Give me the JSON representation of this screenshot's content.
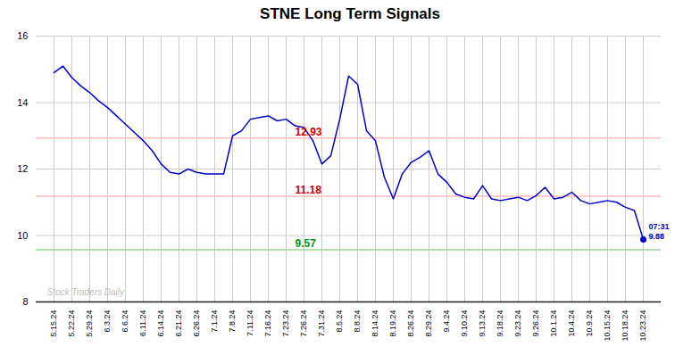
{
  "chart_data": {
    "type": "line",
    "title": "STNE Long Term Signals",
    "categories": [
      "5.15.24",
      null,
      "5.22.24",
      null,
      "5.29.24",
      null,
      "6.3.24",
      null,
      "6.6.24",
      null,
      "6.11.24",
      null,
      "6.14.24",
      null,
      "6.21.24",
      null,
      "6.26.24",
      null,
      "7.1.24",
      null,
      "7.8.24",
      null,
      "7.11.24",
      null,
      "7.16.24",
      null,
      "7.23.24",
      null,
      "7.26.24",
      null,
      "7.31.24",
      null,
      "8.5.24",
      null,
      "8.8.24",
      null,
      "8.14.24",
      null,
      "8.19.24",
      null,
      "8.26.24",
      null,
      "8.29.24",
      null,
      "9.4.24",
      null,
      "9.10.24",
      null,
      "9.13.24",
      null,
      "9.18.24",
      null,
      "9.23.24",
      null,
      "9.26.24",
      null,
      "10.1.24",
      null,
      "10.4.24",
      null,
      "10.9.24",
      null,
      "10.15.24",
      null,
      "10.18.24",
      null,
      "10.23.24"
    ],
    "values": [
      14.9,
      15.1,
      14.75,
      14.5,
      14.3,
      14.05,
      13.85,
      13.6,
      13.35,
      13.1,
      12.85,
      12.55,
      12.15,
      11.9,
      11.85,
      12.0,
      11.9,
      11.85,
      11.85,
      11.85,
      13.0,
      13.15,
      13.5,
      13.55,
      13.6,
      13.45,
      13.5,
      13.3,
      13.25,
      12.85,
      12.15,
      12.4,
      13.5,
      14.8,
      14.55,
      13.15,
      12.85,
      11.75,
      11.1,
      11.85,
      12.2,
      12.35,
      12.55,
      11.85,
      11.6,
      11.25,
      11.15,
      11.1,
      11.5,
      11.1,
      11.05,
      11.1,
      11.15,
      11.05,
      11.2,
      11.45,
      11.1,
      11.15,
      11.3,
      11.05,
      10.95,
      11.0,
      11.05,
      11.0,
      10.85,
      10.75,
      9.88
    ],
    "color": "#0000cc",
    "ylim": [
      8,
      16
    ],
    "yticks": [
      8,
      10,
      12,
      14,
      16
    ],
    "grid": true,
    "annotations": [
      {
        "type": "hline",
        "y": 12.93,
        "label": "12.93",
        "color": "#ffbbbb",
        "text_color": "#cc0000"
      },
      {
        "type": "hline",
        "y": 11.18,
        "label": "11.18",
        "color": "#ffbbbb",
        "text_color": "#cc0000"
      },
      {
        "type": "hline",
        "y": 9.57,
        "label": "9.57",
        "color": "#99dd99",
        "text_color": "#009900"
      },
      {
        "type": "point",
        "y": 9.88,
        "label": "07:31",
        "value_label": "9.88",
        "color": "#0000cc"
      },
      {
        "type": "text",
        "text": "Stock Traders Daily",
        "color": "#bbbbbb"
      }
    ]
  }
}
